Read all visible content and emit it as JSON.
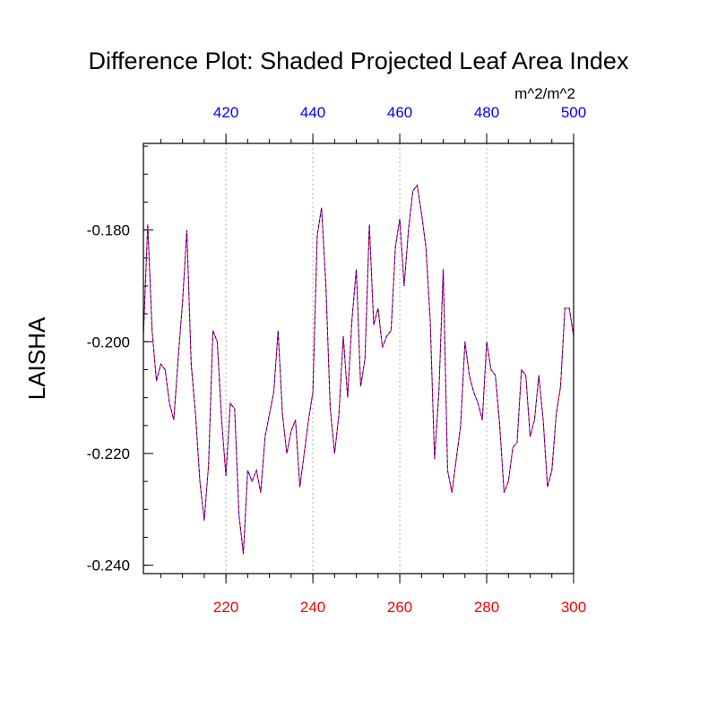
{
  "chart_data": {
    "type": "line",
    "title": "Difference Plot: Shaded Projected Leaf Area Index",
    "ylabel": "LAISHA",
    "units_label": "m^2/m^2",
    "x_bottom": {
      "range": [
        201,
        300
      ],
      "ticks": [
        220,
        240,
        260,
        280,
        300
      ],
      "tick_labels": [
        "220",
        "240",
        "260",
        "280",
        "300"
      ],
      "color": "#ff0000"
    },
    "x_top": {
      "range": [
        401,
        500
      ],
      "ticks": [
        420,
        440,
        460,
        480,
        500
      ],
      "tick_labels": [
        "420",
        "440",
        "460",
        "480",
        "500"
      ],
      "color": "#0000ff"
    },
    "y": {
      "range": [
        -0.2415,
        -0.1645
      ],
      "ticks": [
        -0.18,
        -0.2,
        -0.22,
        -0.24
      ],
      "tick_labels": [
        "-0.180",
        "-0.200",
        "-0.220",
        "-0.240"
      ],
      "minor_step": 0.005
    },
    "grid": "vertical-dotted",
    "series": [
      {
        "name": "LAISHA difference",
        "color_a": "#ff0000",
        "color_b": "#0000ff",
        "x": [
          201,
          202,
          203,
          204,
          205,
          206,
          207,
          208,
          209,
          210,
          211,
          212,
          213,
          214,
          215,
          216,
          217,
          218,
          219,
          220,
          221,
          222,
          223,
          224,
          225,
          226,
          227,
          228,
          229,
          230,
          231,
          232,
          233,
          234,
          235,
          236,
          237,
          238,
          239,
          240,
          241,
          242,
          243,
          244,
          245,
          246,
          247,
          248,
          249,
          250,
          251,
          252,
          253,
          254,
          255,
          256,
          257,
          258,
          259,
          260,
          261,
          262,
          263,
          264,
          265,
          266,
          267,
          268,
          269,
          270,
          271,
          272,
          273,
          274,
          275,
          276,
          277,
          278,
          279,
          280,
          281,
          282,
          283,
          284,
          285,
          286,
          287,
          288,
          289,
          290,
          291,
          292,
          293,
          294,
          295,
          296,
          297,
          298,
          299,
          300
        ],
        "values": [
          -0.199,
          -0.179,
          -0.198,
          -0.207,
          -0.204,
          -0.205,
          -0.211,
          -0.214,
          -0.203,
          -0.193,
          -0.18,
          -0.204,
          -0.213,
          -0.225,
          -0.232,
          -0.222,
          -0.198,
          -0.2,
          -0.214,
          -0.224,
          -0.211,
          -0.212,
          -0.231,
          -0.238,
          -0.223,
          -0.225,
          -0.223,
          -0.227,
          -0.217,
          -0.213,
          -0.209,
          -0.198,
          -0.213,
          -0.22,
          -0.216,
          -0.214,
          -0.226,
          -0.22,
          -0.214,
          -0.209,
          -0.181,
          -0.176,
          -0.19,
          -0.212,
          -0.22,
          -0.213,
          -0.199,
          -0.21,
          -0.196,
          -0.187,
          -0.208,
          -0.203,
          -0.179,
          -0.197,
          -0.194,
          -0.201,
          -0.199,
          -0.198,
          -0.183,
          -0.178,
          -0.19,
          -0.18,
          -0.173,
          -0.172,
          -0.177,
          -0.183,
          -0.196,
          -0.221,
          -0.209,
          -0.187,
          -0.223,
          -0.227,
          -0.221,
          -0.215,
          -0.2,
          -0.206,
          -0.209,
          -0.211,
          -0.214,
          -0.2,
          -0.205,
          -0.206,
          -0.215,
          -0.227,
          -0.225,
          -0.219,
          -0.218,
          -0.205,
          -0.206,
          -0.217,
          -0.214,
          -0.206,
          -0.214,
          -0.226,
          -0.223,
          -0.213,
          -0.208,
          -0.194,
          -0.194,
          -0.199
        ]
      }
    ]
  }
}
